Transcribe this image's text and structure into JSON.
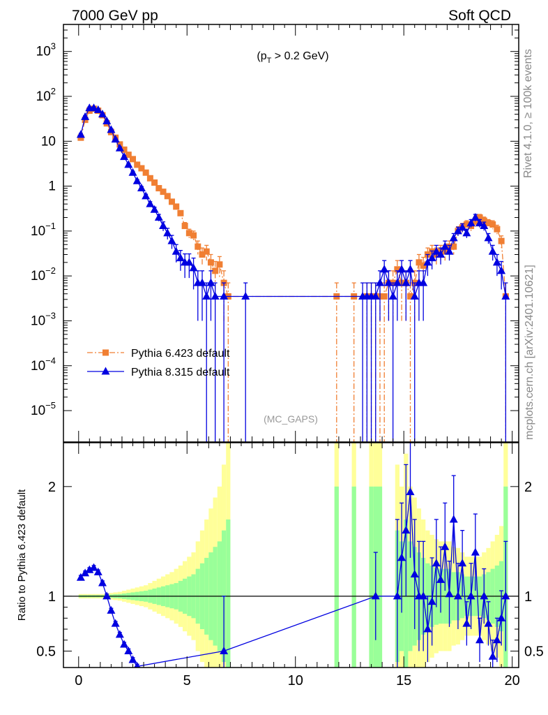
{
  "header": {
    "left": "7000 GeV pp",
    "right": "Soft QCD"
  },
  "side": {
    "rivet": "Rivet 4.1.0, ≥ 100k events",
    "mcplots": "mcplots.cern.ch [arXiv:2401.10621]"
  },
  "chart_data": [
    {
      "type": "line",
      "panel": "main",
      "annotation": "(p_T > 0.2 GeV)",
      "watermark": "(MC_GAPS)",
      "xlim": [
        -0.7,
        20.3
      ],
      "ylim": [
        2e-06,
        4000
      ],
      "yscale": "log",
      "yticks": [
        {
          "v": 1e-05,
          "m": "10",
          "e": "−5"
        },
        {
          "v": 0.0001,
          "m": "10",
          "e": "−4"
        },
        {
          "v": 0.001,
          "m": "10",
          "e": "−3"
        },
        {
          "v": 0.01,
          "m": "10",
          "e": "−2"
        },
        {
          "v": 0.1,
          "m": "10",
          "e": "−1"
        },
        {
          "v": 1,
          "m": "1",
          "e": ""
        },
        {
          "v": 10,
          "m": "10",
          "e": ""
        },
        {
          "v": 100,
          "m": "10",
          "e": "2"
        },
        {
          "v": 1000,
          "m": "10",
          "e": "3"
        }
      ],
      "series": [
        {
          "name": "Pythia 6.423 default",
          "color": "#f07f33",
          "marker": "square",
          "style": "dash-dot",
          "x": [
            0.1,
            0.3,
            0.5,
            0.7,
            0.9,
            1.1,
            1.3,
            1.5,
            1.7,
            1.9,
            2.1,
            2.3,
            2.5,
            2.7,
            2.9,
            3.1,
            3.3,
            3.5,
            3.7,
            3.9,
            4.1,
            4.3,
            4.5,
            4.7,
            4.9,
            5.1,
            5.3,
            5.5,
            5.7,
            5.9,
            6.1,
            6.3,
            6.5,
            6.7,
            6.9,
            11.9,
            12.7,
            13.3,
            13.5,
            13.7,
            13.9,
            14.1,
            14.3,
            14.5,
            14.7,
            14.9,
            15.1,
            15.3,
            15.5,
            15.7,
            15.9,
            16.1,
            16.3,
            16.5,
            16.7,
            16.9,
            17.1,
            17.3,
            17.5,
            17.7,
            17.9,
            18.1,
            18.3,
            18.5,
            18.7,
            18.9,
            19.1,
            19.3,
            19.5,
            19.7
          ],
          "y": [
            12,
            30,
            48,
            53,
            48,
            38,
            25,
            16,
            12,
            8.5,
            6.5,
            5,
            4,
            3,
            2.5,
            2,
            1.5,
            1.2,
            0.9,
            0.75,
            0.6,
            0.45,
            0.35,
            0.25,
            0.13,
            0.09,
            0.08,
            0.045,
            0.03,
            0.035,
            0.02,
            0.013,
            0.018,
            0.007,
            0.0035,
            0.0035,
            0.0035,
            0.0035,
            0.0035,
            0.0035,
            0.0035,
            0.0035,
            0.007,
            0.007,
            0.014,
            0.007,
            0.007,
            0.0035,
            0.007,
            0.02,
            0.017,
            0.03,
            0.035,
            0.03,
            0.035,
            0.035,
            0.045,
            0.045,
            0.1,
            0.12,
            0.14,
            0.13,
            0.16,
            0.2,
            0.17,
            0.15,
            0.14,
            0.11,
            0.06,
            0.0035
          ],
          "yerr_up": [
            1,
            2,
            3,
            3,
            3,
            2,
            1.5,
            1,
            0.8,
            0.6,
            0.4,
            0.3,
            0.25,
            0.2,
            0.15,
            0.15,
            0.1,
            0.1,
            0.08,
            0.07,
            0.06,
            0.05,
            0.04,
            0.035,
            0.025,
            0.02,
            0.02,
            0.015,
            0.012,
            0.013,
            0.01,
            0.008,
            0.009,
            0.006,
            0.0035,
            0.0035,
            0.0035,
            0.0035,
            0.0035,
            0.0035,
            0.0035,
            0.0035,
            0.006,
            0.006,
            0.008,
            0.006,
            0.006,
            0.0035,
            0.006,
            0.01,
            0.009,
            0.012,
            0.013,
            0.012,
            0.013,
            0.013,
            0.015,
            0.015,
            0.025,
            0.028,
            0.03,
            0.03,
            0.035,
            0.035,
            0.035,
            0.03,
            0.03,
            0.025,
            0.018,
            0.0035
          ],
          "yerr_down": [
            1,
            2,
            3,
            3,
            3,
            2,
            1.5,
            1,
            0.8,
            0.6,
            0.4,
            0.3,
            0.25,
            0.2,
            0.15,
            0.15,
            0.1,
            0.1,
            0.08,
            0.07,
            0.06,
            0.05,
            0.04,
            0.035,
            0.025,
            0.02,
            0.02,
            0.015,
            0.012,
            0.013,
            0.01,
            0.008,
            0.009,
            0.006,
            0.0034999,
            0.0034999,
            0.0034999,
            0.0034999,
            0.0034999,
            0.0034999,
            0.0034999,
            0.0034999,
            0.006,
            0.006,
            0.008,
            0.006,
            0.006,
            0.0034999,
            0.006,
            0.01,
            0.009,
            0.012,
            0.013,
            0.012,
            0.013,
            0.013,
            0.015,
            0.015,
            0.025,
            0.028,
            0.03,
            0.03,
            0.035,
            0.035,
            0.035,
            0.03,
            0.03,
            0.025,
            0.018,
            0.0034999
          ]
        },
        {
          "name": "Pythia 8.315 default",
          "color": "#0000e0",
          "marker": "triangle",
          "style": "solid",
          "x": [
            0.1,
            0.3,
            0.5,
            0.7,
            0.9,
            1.1,
            1.3,
            1.5,
            1.7,
            1.9,
            2.1,
            2.3,
            2.5,
            2.7,
            2.9,
            3.1,
            3.3,
            3.5,
            3.7,
            3.9,
            4.1,
            4.3,
            4.5,
            4.7,
            4.9,
            5.1,
            5.3,
            5.5,
            5.7,
            5.9,
            6.1,
            6.3,
            6.7,
            7.7,
            13.1,
            13.3,
            13.5,
            13.7,
            13.9,
            14.1,
            14.3,
            14.5,
            14.7,
            14.9,
            15.1,
            15.3,
            15.5,
            15.7,
            15.9,
            16.1,
            16.3,
            16.5,
            16.7,
            16.9,
            17.1,
            17.3,
            17.5,
            17.7,
            17.9,
            18.1,
            18.3,
            18.5,
            18.7,
            18.9,
            19.1,
            19.3,
            19.5,
            19.7
          ],
          "y": [
            14,
            35,
            55,
            55,
            50,
            40,
            28,
            18,
            11,
            7,
            4.5,
            3,
            2,
            1.3,
            0.9,
            0.6,
            0.4,
            0.3,
            0.2,
            0.13,
            0.09,
            0.06,
            0.035,
            0.025,
            0.02,
            0.02,
            0.015,
            0.007,
            0.007,
            0.0035,
            0.007,
            0.0035,
            0.0035,
            0.0035,
            0.0035,
            0.0035,
            0.0035,
            0.0035,
            0.007,
            0.014,
            0.007,
            0.0035,
            0.007,
            0.014,
            0.007,
            0.014,
            0.0035,
            0.007,
            0.007,
            0.02,
            0.025,
            0.035,
            0.03,
            0.045,
            0.035,
            0.07,
            0.1,
            0.12,
            0.09,
            0.15,
            0.2,
            0.15,
            0.13,
            0.07,
            0.035,
            0.02,
            0.013,
            0.0035
          ],
          "yerr_up": [
            1,
            2,
            3,
            3,
            3,
            2,
            1.5,
            1,
            0.7,
            0.5,
            0.3,
            0.2,
            0.15,
            0.1,
            0.08,
            0.06,
            0.05,
            0.04,
            0.035,
            0.03,
            0.025,
            0.02,
            0.015,
            0.012,
            0.011,
            0.011,
            0.01,
            0.006,
            0.006,
            0.0035,
            0.006,
            0.0035,
            0.0035,
            0.0035,
            0.0035,
            0.0035,
            0.0035,
            0.0035,
            0.006,
            0.008,
            0.006,
            0.0035,
            0.006,
            0.008,
            0.006,
            0.008,
            0.0035,
            0.006,
            0.006,
            0.01,
            0.011,
            0.013,
            0.012,
            0.015,
            0.013,
            0.018,
            0.022,
            0.025,
            0.02,
            0.03,
            0.035,
            0.03,
            0.028,
            0.018,
            0.013,
            0.01,
            0.008,
            0.0035
          ],
          "yerr_down": [
            1,
            2,
            3,
            3,
            3,
            2,
            1.5,
            1,
            0.7,
            0.5,
            0.3,
            0.2,
            0.15,
            0.1,
            0.08,
            0.06,
            0.05,
            0.04,
            0.035,
            0.03,
            0.025,
            0.02,
            0.015,
            0.012,
            0.011,
            0.011,
            0.01,
            0.006,
            0.006,
            0.0034999,
            0.006,
            0.0034999,
            0.0034999,
            0.0034999,
            0.0034999,
            0.0034999,
            0.0034999,
            0.0034999,
            0.006,
            0.008,
            0.006,
            0.0034999,
            0.006,
            0.008,
            0.006,
            0.008,
            0.0034999,
            0.006,
            0.006,
            0.01,
            0.011,
            0.013,
            0.012,
            0.015,
            0.013,
            0.018,
            0.022,
            0.025,
            0.02,
            0.03,
            0.035,
            0.03,
            0.028,
            0.018,
            0.013,
            0.01,
            0.008,
            0.0034999
          ]
        }
      ],
      "legend": "left-middle"
    },
    {
      "type": "line",
      "panel": "ratio",
      "ylabel": "Ratio to Pythia 6.423 default",
      "xlim": [
        -0.7,
        20.3
      ],
      "ylim": [
        0.35,
        2.4
      ],
      "xticks": [
        0,
        5,
        10,
        15,
        20
      ],
      "yticks": [
        0.5,
        1,
        2
      ],
      "ytick_labels": [
        "0.5",
        "1",
        "2"
      ],
      "xtick_labels": [
        "0",
        "5",
        "10",
        "15",
        "20"
      ],
      "reference": 1,
      "band": {
        "note": "MC statistical uncertainty bands of the reference (green 1 sigma, yellow 2 sigma)",
        "inner_color": "#99ff99",
        "outer_color": "#ffff99",
        "x_low": [
          0,
          0.2,
          0.4,
          0.6,
          0.8,
          1.0,
          1.2,
          1.4,
          1.6,
          1.8,
          2.0,
          2.2,
          2.4,
          2.6,
          2.8,
          3.0,
          3.2,
          3.4,
          3.6,
          3.8,
          4.0,
          4.2,
          4.4,
          4.6,
          4.8,
          5.0,
          5.2,
          5.4,
          5.6,
          5.8,
          6.0,
          6.2,
          6.4,
          6.6,
          6.8,
          11.8,
          12.6,
          13.4,
          13.6,
          14.6,
          14.8,
          15.0,
          15.2,
          15.4,
          15.6,
          15.8,
          16.0,
          16.2,
          16.4,
          16.6,
          16.8,
          17.0,
          17.2,
          17.4,
          17.6,
          17.8,
          18.0,
          18.2,
          18.4,
          18.6,
          18.8,
          19.0,
          19.2,
          19.4,
          19.6
        ],
        "x_high": [
          0.2,
          0.4,
          0.6,
          0.8,
          1.0,
          1.2,
          1.4,
          1.6,
          1.8,
          2.0,
          2.2,
          2.4,
          2.6,
          2.8,
          3.0,
          3.2,
          3.4,
          3.6,
          3.8,
          4.0,
          4.2,
          4.4,
          4.6,
          4.8,
          5.0,
          5.2,
          5.4,
          5.6,
          5.8,
          6.0,
          6.2,
          6.4,
          6.6,
          6.8,
          7.0,
          12.0,
          12.8,
          13.6,
          14.0,
          14.8,
          15.0,
          15.2,
          15.4,
          15.6,
          15.8,
          16.0,
          16.2,
          16.4,
          16.6,
          16.8,
          17.0,
          17.2,
          17.4,
          17.6,
          17.8,
          18.0,
          18.2,
          18.4,
          18.6,
          18.8,
          19.0,
          19.2,
          19.4,
          19.6,
          19.8
        ],
        "inner": [
          0.01,
          0.01,
          0.01,
          0.01,
          0.01,
          0.01,
          0.012,
          0.015,
          0.018,
          0.02,
          0.025,
          0.03,
          0.035,
          0.04,
          0.045,
          0.05,
          0.06,
          0.07,
          0.08,
          0.09,
          0.1,
          0.11,
          0.12,
          0.14,
          0.16,
          0.18,
          0.2,
          0.25,
          0.3,
          0.35,
          0.4,
          0.45,
          0.5,
          0.6,
          0.7,
          1,
          1,
          1,
          1,
          0.6,
          0.5,
          0.7,
          0.5,
          0.45,
          0.4,
          0.35,
          0.3,
          0.28,
          0.26,
          0.25,
          0.25,
          0.25,
          0.22,
          0.22,
          0.2,
          0.18,
          0.18,
          0.18,
          0.18,
          0.2,
          0.22,
          0.25,
          0.28,
          0.32,
          1
        ],
        "outer": [
          0.02,
          0.02,
          0.02,
          0.02,
          0.02,
          0.02,
          0.025,
          0.03,
          0.035,
          0.04,
          0.05,
          0.06,
          0.07,
          0.08,
          0.09,
          0.1,
          0.12,
          0.14,
          0.16,
          0.18,
          0.2,
          0.22,
          0.25,
          0.28,
          0.32,
          0.36,
          0.4,
          0.5,
          0.6,
          0.7,
          0.8,
          0.9,
          1.0,
          1.2,
          1.4,
          1.4,
          1.4,
          1.4,
          1.4,
          1.2,
          1.0,
          1.3,
          1.0,
          0.9,
          0.8,
          0.7,
          0.6,
          0.56,
          0.52,
          0.5,
          0.5,
          0.5,
          0.45,
          0.44,
          0.4,
          0.36,
          0.36,
          0.36,
          0.36,
          0.4,
          0.44,
          0.5,
          0.56,
          0.64,
          1.4
        ]
      },
      "series": [
        {
          "name": "Pythia 8.315 default",
          "color": "#0000e0",
          "marker": "triangle",
          "x": [
            0.1,
            0.3,
            0.5,
            0.7,
            0.9,
            1.1,
            1.3,
            1.5,
            1.7,
            1.9,
            2.1,
            2.3,
            2.5,
            2.7,
            6.7,
            13.7,
            14.7,
            14.9,
            15.1,
            15.3,
            15.5,
            15.7,
            15.9,
            16.1,
            16.3,
            16.5,
            16.7,
            16.9,
            17.1,
            17.3,
            17.5,
            17.7,
            17.9,
            18.1,
            18.3,
            18.5,
            18.7,
            18.9,
            19.1,
            19.3,
            19.5,
            19.7
          ],
          "y": [
            1.17,
            1.21,
            1.24,
            1.26,
            1.22,
            1.12,
            1.0,
            0.87,
            0.75,
            0.65,
            0.56,
            0.5,
            0.42,
            0.36,
            0.5,
            1.0,
            1.0,
            1.35,
            1.6,
            1.95,
            1.2,
            1.0,
            1.0,
            0.7,
            0.95,
            1.3,
            1.15,
            1.45,
            1.02,
            1.7,
            1.0,
            1.3,
            0.75,
            1.0,
            1.4,
            0.6,
            1.0,
            0.75,
            0.45,
            0.6,
            0.8,
            1.0
          ],
          "yerr_up": [
            0.02,
            0.02,
            0.02,
            0.02,
            0.02,
            0.02,
            0.02,
            0.02,
            0.02,
            0.02,
            0.02,
            0.02,
            0.02,
            0.02,
            0.5,
            0.4,
            0.7,
            0.5,
            0.6,
            0.6,
            0.5,
            0.5,
            0.5,
            0.3,
            0.4,
            0.4,
            0.3,
            0.4,
            0.3,
            0.4,
            0.3,
            0.3,
            0.2,
            0.3,
            0.35,
            0.2,
            0.25,
            0.2,
            0.15,
            0.2,
            0.25,
            0.5
          ],
          "yerr_down": [
            0.02,
            0.02,
            0.02,
            0.02,
            0.02,
            0.02,
            0.02,
            0.02,
            0.02,
            0.02,
            0.02,
            0.02,
            0.02,
            0.02,
            0.5,
            0.4,
            0.7,
            0.5,
            0.6,
            0.6,
            0.5,
            0.5,
            0.5,
            0.3,
            0.4,
            0.4,
            0.3,
            0.4,
            0.3,
            0.4,
            0.3,
            0.3,
            0.2,
            0.3,
            0.35,
            0.2,
            0.25,
            0.2,
            0.15,
            0.2,
            0.25,
            0.5
          ]
        }
      ]
    }
  ]
}
